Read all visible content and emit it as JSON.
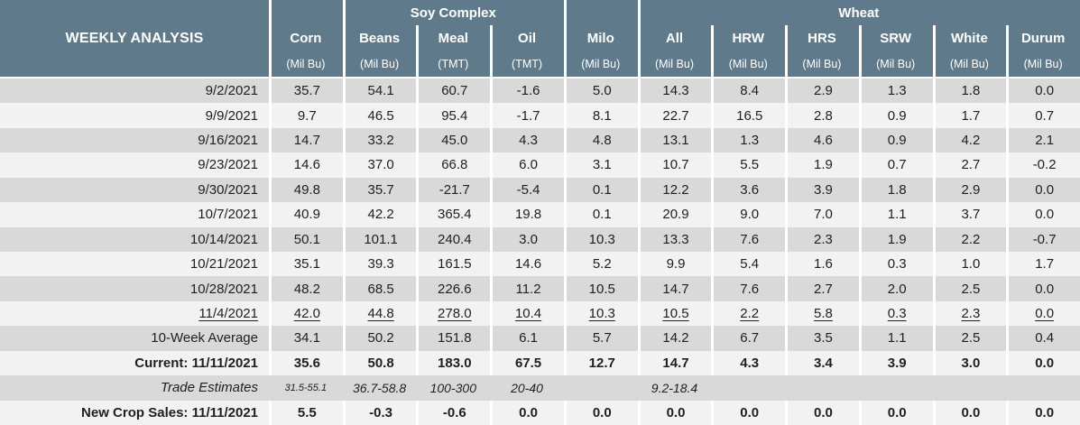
{
  "colors": {
    "header_bg": "#5f7b8b",
    "header_text": "#ffffff",
    "row_dark": "#d9d9d9",
    "row_light": "#f2f2f2",
    "separator": "#ffffff",
    "text": "#1f1f1f"
  },
  "chart_data": {
    "type": "table",
    "title": "WEEKLY ANALYSIS",
    "groups": [
      {
        "label": "Soy Complex",
        "start": 1,
        "span": 3
      },
      {
        "label": "Wheat",
        "start": 5,
        "span": 6
      }
    ],
    "columns": [
      {
        "name": "Corn",
        "unit": "(Mil Bu)",
        "group": null
      },
      {
        "name": "Beans",
        "unit": "(Mil Bu)",
        "group": "Soy Complex"
      },
      {
        "name": "Meal",
        "unit": "(TMT)",
        "group": "Soy Complex"
      },
      {
        "name": "Oil",
        "unit": "(TMT)",
        "group": "Soy Complex"
      },
      {
        "name": "Milo",
        "unit": "(Mil Bu)",
        "group": null
      },
      {
        "name": "All",
        "unit": "(Mil Bu)",
        "group": "Wheat"
      },
      {
        "name": "HRW",
        "unit": "(Mil Bu)",
        "group": "Wheat"
      },
      {
        "name": "HRS",
        "unit": "(Mil Bu)",
        "group": "Wheat"
      },
      {
        "name": "SRW",
        "unit": "(Mil Bu)",
        "group": "Wheat"
      },
      {
        "name": "White",
        "unit": "(Mil Bu)",
        "group": "Wheat"
      },
      {
        "name": "Durum",
        "unit": "(Mil Bu)",
        "group": "Wheat"
      }
    ],
    "rows": [
      {
        "label": "9/2/2021",
        "kind": "week",
        "values": [
          "35.7",
          "54.1",
          "60.7",
          "-1.6",
          "5.0",
          "14.3",
          "8.4",
          "2.9",
          "1.3",
          "1.8",
          "0.0"
        ]
      },
      {
        "label": "9/9/2021",
        "kind": "week",
        "values": [
          "9.7",
          "46.5",
          "95.4",
          "-1.7",
          "8.1",
          "22.7",
          "16.5",
          "2.8",
          "0.9",
          "1.7",
          "0.7"
        ]
      },
      {
        "label": "9/16/2021",
        "kind": "week",
        "values": [
          "14.7",
          "33.2",
          "45.0",
          "4.3",
          "4.8",
          "13.1",
          "1.3",
          "4.6",
          "0.9",
          "4.2",
          "2.1"
        ]
      },
      {
        "label": "9/23/2021",
        "kind": "week",
        "values": [
          "14.6",
          "37.0",
          "66.8",
          "6.0",
          "3.1",
          "10.7",
          "5.5",
          "1.9",
          "0.7",
          "2.7",
          "-0.2"
        ]
      },
      {
        "label": "9/30/2021",
        "kind": "week",
        "values": [
          "49.8",
          "35.7",
          "-21.7",
          "-5.4",
          "0.1",
          "12.2",
          "3.6",
          "3.9",
          "1.8",
          "2.9",
          "0.0"
        ]
      },
      {
        "label": "10/7/2021",
        "kind": "week",
        "values": [
          "40.9",
          "42.2",
          "365.4",
          "19.8",
          "0.1",
          "20.9",
          "9.0",
          "7.0",
          "1.1",
          "3.7",
          "0.0"
        ]
      },
      {
        "label": "10/14/2021",
        "kind": "week",
        "values": [
          "50.1",
          "101.1",
          "240.4",
          "3.0",
          "10.3",
          "13.3",
          "7.6",
          "2.3",
          "1.9",
          "2.2",
          "-0.7"
        ]
      },
      {
        "label": "10/21/2021",
        "kind": "week",
        "values": [
          "35.1",
          "39.3",
          "161.5",
          "14.6",
          "5.2",
          "9.9",
          "5.4",
          "1.6",
          "0.3",
          "1.0",
          "1.7"
        ]
      },
      {
        "label": "10/28/2021",
        "kind": "week",
        "values": [
          "48.2",
          "68.5",
          "226.6",
          "11.2",
          "10.5",
          "14.7",
          "7.6",
          "2.7",
          "2.0",
          "2.5",
          "0.0"
        ]
      },
      {
        "label": "11/4/2021",
        "kind": "underline",
        "values": [
          "42.0",
          "44.8",
          "278.0",
          "10.4",
          "10.3",
          "10.5",
          "2.2",
          "5.8",
          "0.3",
          "2.3",
          "0.0"
        ]
      },
      {
        "label": "10-Week Average",
        "kind": "average",
        "values": [
          "34.1",
          "50.2",
          "151.8",
          "6.1",
          "5.7",
          "14.2",
          "6.7",
          "3.5",
          "1.1",
          "2.5",
          "0.4"
        ]
      },
      {
        "label": "Current: 11/11/2021",
        "kind": "current",
        "values": [
          "35.6",
          "50.8",
          "183.0",
          "67.5",
          "12.7",
          "14.7",
          "4.3",
          "3.4",
          "3.9",
          "3.0",
          "0.0"
        ]
      },
      {
        "label": "Trade Estimates",
        "kind": "estimates",
        "values": [
          "31.5-55.1",
          "36.7-58.8",
          "100-300",
          "20-40",
          "",
          "9.2-18.4",
          "",
          "",
          "",
          "",
          ""
        ]
      },
      {
        "label": "New Crop Sales: 11/11/2021",
        "kind": "newcrop",
        "values": [
          "5.5",
          "-0.3",
          "-0.6",
          "0.0",
          "0.0",
          "0.0",
          "0.0",
          "0.0",
          "0.0",
          "0.0",
          "0.0"
        ]
      }
    ]
  }
}
